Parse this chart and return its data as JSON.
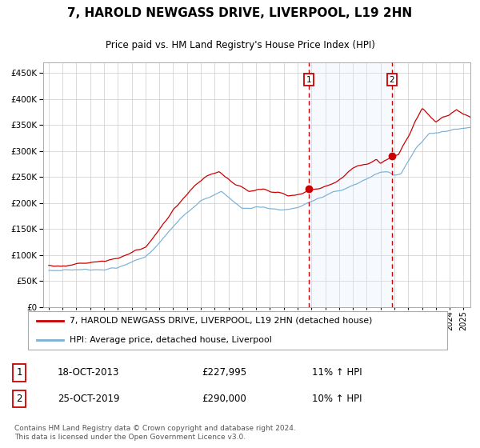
{
  "title": "7, HAROLD NEWGASS DRIVE, LIVERPOOL, L19 2HN",
  "subtitle": "Price paid vs. HM Land Registry's House Price Index (HPI)",
  "ylim": [
    0,
    470000
  ],
  "yticks": [
    0,
    50000,
    100000,
    150000,
    200000,
    250000,
    300000,
    350000,
    400000,
    450000
  ],
  "sale1_date": 2013.8,
  "sale1_price": 227995,
  "sale2_date": 2019.83,
  "sale2_price": 290000,
  "hpi_color": "#7ab0d4",
  "price_color": "#cc0000",
  "shade_color": "#ddeeff",
  "vline_color": "#cc0000",
  "grid_color": "#cccccc",
  "bg_color": "#ffffff",
  "legend_house": "7, HAROLD NEWGASS DRIVE, LIVERPOOL, L19 2HN (detached house)",
  "legend_hpi": "HPI: Average price, detached house, Liverpool",
  "sale1_label": "1",
  "sale1_text": "18-OCT-2013",
  "sale1_amount": "£227,995",
  "sale1_hpi": "11% ↑ HPI",
  "sale2_label": "2",
  "sale2_text": "25-OCT-2019",
  "sale2_amount": "£290,000",
  "sale2_hpi": "10% ↑ HPI",
  "footer": "Contains HM Land Registry data © Crown copyright and database right 2024.\nThis data is licensed under the Open Government Licence v3.0."
}
